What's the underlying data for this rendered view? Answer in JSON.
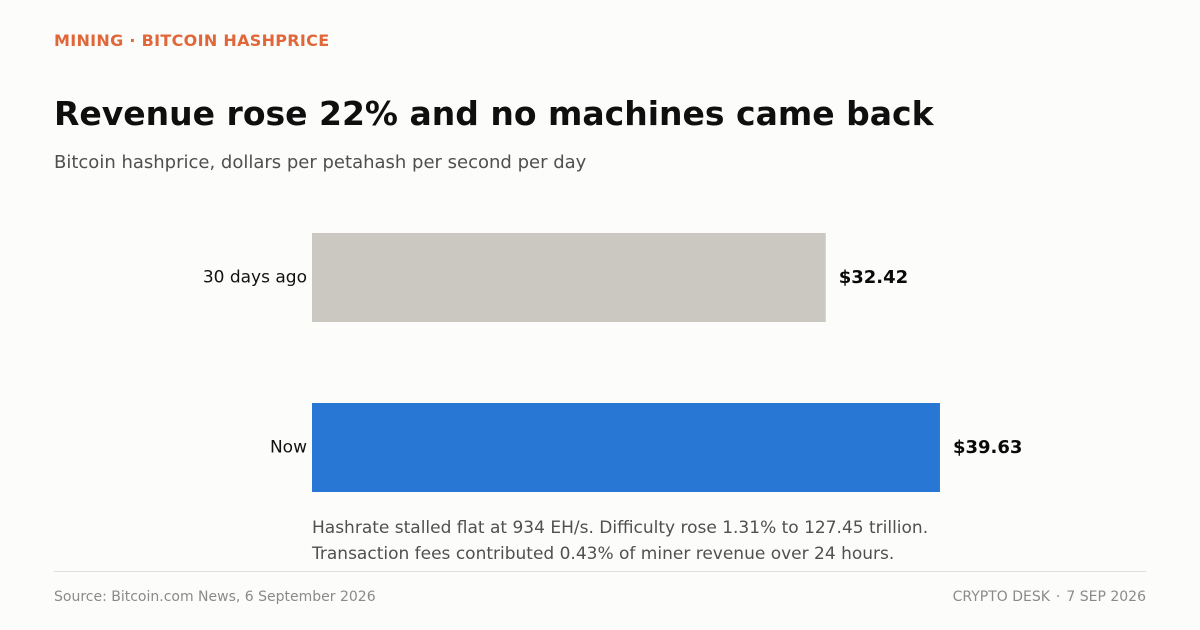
{
  "header": {
    "kicker": "MINING · BITCOIN HASHPRICE",
    "kicker_color": "#e0673a"
  },
  "chart_data": {
    "type": "bar",
    "orientation": "horizontal",
    "title": "Revenue rose 22% and no machines came back",
    "subtitle": "Bitcoin hashprice, dollars per petahash per second per day",
    "categories": [
      "30 days ago",
      "Now"
    ],
    "values": [
      32.42,
      39.63
    ],
    "value_labels": [
      "$32.42",
      "$39.63"
    ],
    "colors": [
      "#cbc8c1",
      "#2877d4"
    ],
    "xlim": [
      0,
      46.7
    ],
    "grid": false,
    "legend": "none"
  },
  "notes": {
    "line1": "Hashrate stalled flat at 934 EH/s. Difficulty rose 1.31% to 127.45 trillion.",
    "line2": "Transaction fees contributed 0.43% of miner revenue over 24 hours."
  },
  "footer": {
    "source": "Source: Bitcoin.com News, 6 September 2026",
    "publisher": "CRYPTO DESK",
    "separator": "·",
    "date": "7 SEP 2026"
  }
}
